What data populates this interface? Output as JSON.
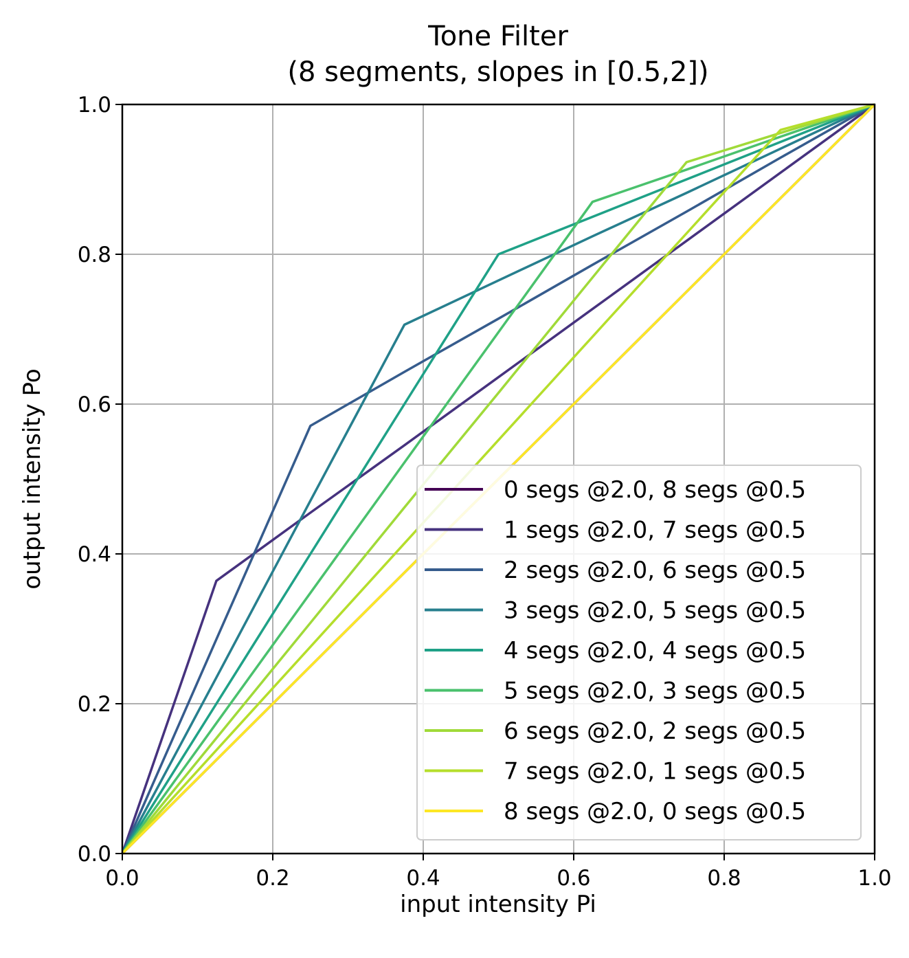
{
  "chart_data": {
    "type": "line",
    "title": "Tone Filter",
    "subtitle": "(8 segments, slopes in [0.5,2])",
    "xlabel": "input intensity Pi",
    "ylabel": "output intensity Po",
    "xlim": [
      0.0,
      1.0
    ],
    "ylim": [
      0.0,
      1.0
    ],
    "xticks": [
      "0.0",
      "0.2",
      "0.4",
      "0.6",
      "0.8",
      "1.0"
    ],
    "yticks": [
      "0.0",
      "0.2",
      "0.4",
      "0.6",
      "0.8",
      "1.0"
    ],
    "grid": true,
    "legend_position": "lower-right",
    "series": [
      {
        "name": "0 segs @2.0, 8 segs @0.5",
        "color": "#440154",
        "x": [
          0,
          0.125,
          0.25,
          0.375,
          0.5,
          0.625,
          0.75,
          0.875,
          1.0
        ],
        "y": [
          0,
          0.125,
          0.25,
          0.375,
          0.5,
          0.625,
          0.75,
          0.875,
          1.0
        ]
      },
      {
        "name": "1 segs @2.0, 7 segs @0.5",
        "color": "#46327e",
        "x": [
          0,
          0.125,
          0.25,
          0.375,
          0.5,
          0.625,
          0.75,
          0.875,
          1.0
        ],
        "y": [
          0,
          0.364,
          0.455,
          0.545,
          0.636,
          0.727,
          0.818,
          0.909,
          1.0
        ]
      },
      {
        "name": "2 segs @2.0, 6 segs @0.5",
        "color": "#365c8d",
        "x": [
          0,
          0.125,
          0.25,
          0.375,
          0.5,
          0.625,
          0.75,
          0.875,
          1.0
        ],
        "y": [
          0,
          0.286,
          0.571,
          0.643,
          0.714,
          0.786,
          0.857,
          0.929,
          1.0
        ]
      },
      {
        "name": "3 segs @2.0, 5 segs @0.5",
        "color": "#277f8e",
        "x": [
          0,
          0.125,
          0.25,
          0.375,
          0.5,
          0.625,
          0.75,
          0.875,
          1.0
        ],
        "y": [
          0,
          0.235,
          0.471,
          0.706,
          0.765,
          0.824,
          0.882,
          0.941,
          1.0
        ]
      },
      {
        "name": "4 segs @2.0, 4 segs @0.5",
        "color": "#1fa187",
        "x": [
          0,
          0.125,
          0.25,
          0.375,
          0.5,
          0.625,
          0.75,
          0.875,
          1.0
        ],
        "y": [
          0,
          0.2,
          0.4,
          0.6,
          0.8,
          0.85,
          0.9,
          0.95,
          1.0
        ]
      },
      {
        "name": "5 segs @2.0, 3 segs @0.5",
        "color": "#4ac16d",
        "x": [
          0,
          0.125,
          0.25,
          0.375,
          0.5,
          0.625,
          0.75,
          0.875,
          1.0
        ],
        "y": [
          0,
          0.174,
          0.348,
          0.522,
          0.696,
          0.87,
          0.913,
          0.957,
          1.0
        ]
      },
      {
        "name": "6 segs @2.0, 2 segs @0.5",
        "color": "#a0da39",
        "x": [
          0,
          0.125,
          0.25,
          0.375,
          0.5,
          0.625,
          0.75,
          0.875,
          1.0
        ],
        "y": [
          0,
          0.154,
          0.308,
          0.462,
          0.615,
          0.769,
          0.923,
          0.962,
          1.0
        ]
      },
      {
        "name": "7 segs @2.0, 1 segs @0.5",
        "color": "#b5de2b",
        "x": [
          0,
          0.125,
          0.25,
          0.375,
          0.5,
          0.625,
          0.75,
          0.875,
          1.0
        ],
        "y": [
          0,
          0.138,
          0.276,
          0.414,
          0.552,
          0.69,
          0.828,
          0.966,
          1.0
        ]
      },
      {
        "name": "8 segs @2.0, 0 segs @0.5",
        "color": "#fde725",
        "x": [
          0,
          0.125,
          0.25,
          0.375,
          0.5,
          0.625,
          0.75,
          0.875,
          1.0
        ],
        "y": [
          0,
          0.125,
          0.25,
          0.375,
          0.5,
          0.625,
          0.75,
          0.875,
          1.0
        ]
      }
    ]
  }
}
